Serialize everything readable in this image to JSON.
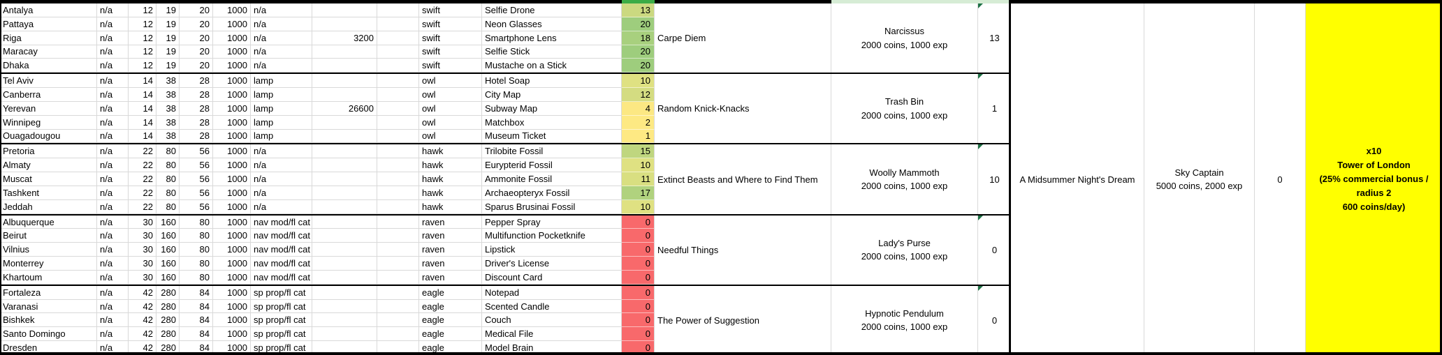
{
  "colors": {
    "gridline": "#D9D9D9",
    "thick_border": "#000000",
    "prize_cell_bg": "#FFFF00",
    "strip_bright_green": "#3BAC46",
    "strip_pale_green": "#D6ECD5",
    "comment_indicator_green": "#1E7145",
    "scale_red": "#F8696B",
    "scale_yellow": "#FFEB84",
    "scale_green": "#9ECD7D"
  },
  "count_colors": {
    "0": "#F8696B",
    "1": "#FEE983",
    "2": "#FDE983",
    "4": "#FCE883",
    "10": "#DFE182",
    "11": "#D9DF81",
    "12": "#D4DC81",
    "13": "#CBD980",
    "15": "#BFD67F",
    "17": "#B0D27E",
    "18": "#A8D07E",
    "20": "#9ECD7D"
  },
  "groups": [
    {
      "quest": "Carpe Diem",
      "reward_name": "Narcissus",
      "reward_detail": "2000 coins, 1000 exp",
      "total": "13",
      "rows": [
        {
          "city": "Antalya",
          "na": "n/a",
          "t1": "12",
          "t2": "19",
          "t3": "20",
          "t4": "1000",
          "mod": "n/a",
          "price": "",
          "plane": "swift",
          "item": "Selfie Drone",
          "count": "13"
        },
        {
          "city": "Pattaya",
          "na": "n/a",
          "t1": "12",
          "t2": "19",
          "t3": "20",
          "t4": "1000",
          "mod": "n/a",
          "price": "",
          "plane": "swift",
          "item": "Neon Glasses",
          "count": "20"
        },
        {
          "city": "Riga",
          "na": "n/a",
          "t1": "12",
          "t2": "19",
          "t3": "20",
          "t4": "1000",
          "mod": "n/a",
          "price": "3200",
          "plane": "swift",
          "item": "Smartphone Lens",
          "count": "18"
        },
        {
          "city": "Maracay",
          "na": "n/a",
          "t1": "12",
          "t2": "19",
          "t3": "20",
          "t4": "1000",
          "mod": "n/a",
          "price": "",
          "plane": "swift",
          "item": "Selfie Stick",
          "count": "20"
        },
        {
          "city": "Dhaka",
          "na": "n/a",
          "t1": "12",
          "t2": "19",
          "t3": "20",
          "t4": "1000",
          "mod": "n/a",
          "price": "",
          "plane": "swift",
          "item": "Mustache on a Stick",
          "count": "20"
        }
      ]
    },
    {
      "quest": "Random Knick-Knacks",
      "reward_name": "Trash Bin",
      "reward_detail": "2000 coins, 1000 exp",
      "total": "1",
      "rows": [
        {
          "city": "Tel Aviv",
          "na": "n/a",
          "t1": "14",
          "t2": "38",
          "t3": "28",
          "t4": "1000",
          "mod": "lamp",
          "price": "",
          "plane": "owl",
          "item": "Hotel Soap",
          "count": "10"
        },
        {
          "city": "Canberra",
          "na": "n/a",
          "t1": "14",
          "t2": "38",
          "t3": "28",
          "t4": "1000",
          "mod": "lamp",
          "price": "",
          "plane": "owl",
          "item": "City Map",
          "count": "12"
        },
        {
          "city": "Yerevan",
          "na": "n/a",
          "t1": "14",
          "t2": "38",
          "t3": "28",
          "t4": "1000",
          "mod": "lamp",
          "price": "26600",
          "plane": "owl",
          "item": "Subway Map",
          "count": "4"
        },
        {
          "city": "Winnipeg",
          "na": "n/a",
          "t1": "14",
          "t2": "38",
          "t3": "28",
          "t4": "1000",
          "mod": "lamp",
          "price": "",
          "plane": "owl",
          "item": "Matchbox",
          "count": "2"
        },
        {
          "city": "Ouagadougou",
          "na": "n/a",
          "t1": "14",
          "t2": "38",
          "t3": "28",
          "t4": "1000",
          "mod": "lamp",
          "price": "",
          "plane": "owl",
          "item": "Museum Ticket",
          "count": "1"
        }
      ]
    },
    {
      "quest": "Extinct Beasts and Where to Find Them",
      "reward_name": "Woolly Mammoth",
      "reward_detail": "2000 coins, 1000 exp",
      "total": "10",
      "rows": [
        {
          "city": "Pretoria",
          "na": "n/a",
          "t1": "22",
          "t2": "80",
          "t3": "56",
          "t4": "1000",
          "mod": "n/a",
          "price": "",
          "plane": "hawk",
          "item": "Trilobite Fossil",
          "count": "15"
        },
        {
          "city": "Almaty",
          "na": "n/a",
          "t1": "22",
          "t2": "80",
          "t3": "56",
          "t4": "1000",
          "mod": "n/a",
          "price": "",
          "plane": "hawk",
          "item": "Eurypterid Fossil",
          "count": "10"
        },
        {
          "city": "Muscat",
          "na": "n/a",
          "t1": "22",
          "t2": "80",
          "t3": "56",
          "t4": "1000",
          "mod": "n/a",
          "price": "",
          "plane": "hawk",
          "item": "Ammonite Fossil",
          "count": "11"
        },
        {
          "city": "Tashkent",
          "na": "n/a",
          "t1": "22",
          "t2": "80",
          "t3": "56",
          "t4": "1000",
          "mod": "n/a",
          "price": "",
          "plane": "hawk",
          "item": "Archaeopteryx Fossil",
          "count": "17"
        },
        {
          "city": "Jeddah",
          "na": "n/a",
          "t1": "22",
          "t2": "80",
          "t3": "56",
          "t4": "1000",
          "mod": "n/a",
          "price": "",
          "plane": "hawk",
          "item": "Sparus Brusinai Fossil",
          "count": "10"
        }
      ]
    },
    {
      "quest": "Needful Things",
      "reward_name": "Lady's Purse",
      "reward_detail": "2000 coins, 1000 exp",
      "total": "0",
      "rows": [
        {
          "city": "Albuquerque",
          "na": "n/a",
          "t1": "30",
          "t2": "160",
          "t3": "80",
          "t4": "1000",
          "mod": "nav mod/fl cat",
          "price": "",
          "plane": "raven",
          "item": "Pepper Spray",
          "count": "0"
        },
        {
          "city": "Beirut",
          "na": "n/a",
          "t1": "30",
          "t2": "160",
          "t3": "80",
          "t4": "1000",
          "mod": "nav mod/fl cat",
          "price": "",
          "plane": "raven",
          "item": "Multifunction Pocketknife",
          "count": "0"
        },
        {
          "city": "Vilnius",
          "na": "n/a",
          "t1": "30",
          "t2": "160",
          "t3": "80",
          "t4": "1000",
          "mod": "nav mod/fl cat",
          "price": "",
          "plane": "raven",
          "item": "Lipstick",
          "count": "0"
        },
        {
          "city": "Monterrey",
          "na": "n/a",
          "t1": "30",
          "t2": "160",
          "t3": "80",
          "t4": "1000",
          "mod": "nav mod/fl cat",
          "price": "",
          "plane": "raven",
          "item": "Driver's License",
          "count": "0"
        },
        {
          "city": "Khartoum",
          "na": "n/a",
          "t1": "30",
          "t2": "160",
          "t3": "80",
          "t4": "1000",
          "mod": "nav mod/fl cat",
          "price": "",
          "plane": "raven",
          "item": "Discount Card",
          "count": "0"
        }
      ]
    },
    {
      "quest": "The Power of Suggestion",
      "reward_name": "Hypnotic Pendulum",
      "reward_detail": "2000 coins, 1000 exp",
      "total": "0",
      "rows": [
        {
          "city": "Fortaleza",
          "na": "n/a",
          "t1": "42",
          "t2": "280",
          "t3": "84",
          "t4": "1000",
          "mod": "sp prop/fl cat",
          "price": "",
          "plane": "eagle",
          "item": "Notepad",
          "count": "0"
        },
        {
          "city": "Varanasi",
          "na": "n/a",
          "t1": "42",
          "t2": "280",
          "t3": "84",
          "t4": "1000",
          "mod": "sp prop/fl cat",
          "price": "",
          "plane": "eagle",
          "item": "Scented Candle",
          "count": "0"
        },
        {
          "city": "Bishkek",
          "na": "n/a",
          "t1": "42",
          "t2": "280",
          "t3": "84",
          "t4": "1000",
          "mod": "sp prop/fl cat",
          "price": "",
          "plane": "eagle",
          "item": "Couch",
          "count": "0"
        },
        {
          "city": "Santo Domingo",
          "na": "n/a",
          "t1": "42",
          "t2": "280",
          "t3": "84",
          "t4": "1000",
          "mod": "sp prop/fl cat",
          "price": "",
          "plane": "eagle",
          "item": "Medical File",
          "count": "0"
        },
        {
          "city": "Dresden",
          "na": "n/a",
          "t1": "42",
          "t2": "280",
          "t3": "84",
          "t4": "1000",
          "mod": "sp prop/fl cat",
          "price": "",
          "plane": "eagle",
          "item": "Model Brain",
          "count": "0"
        }
      ]
    }
  ],
  "mega": {
    "quest": "A Midsummer Night's Dream",
    "reward_name": "Sky Captain",
    "reward_detail": "5000 coins, 2000 exp",
    "total": "0",
    "prize_lines": [
      "x10",
      "Tower of London",
      "(25% commercial bonus /",
      "radius 2",
      "600 coins/day)"
    ]
  }
}
